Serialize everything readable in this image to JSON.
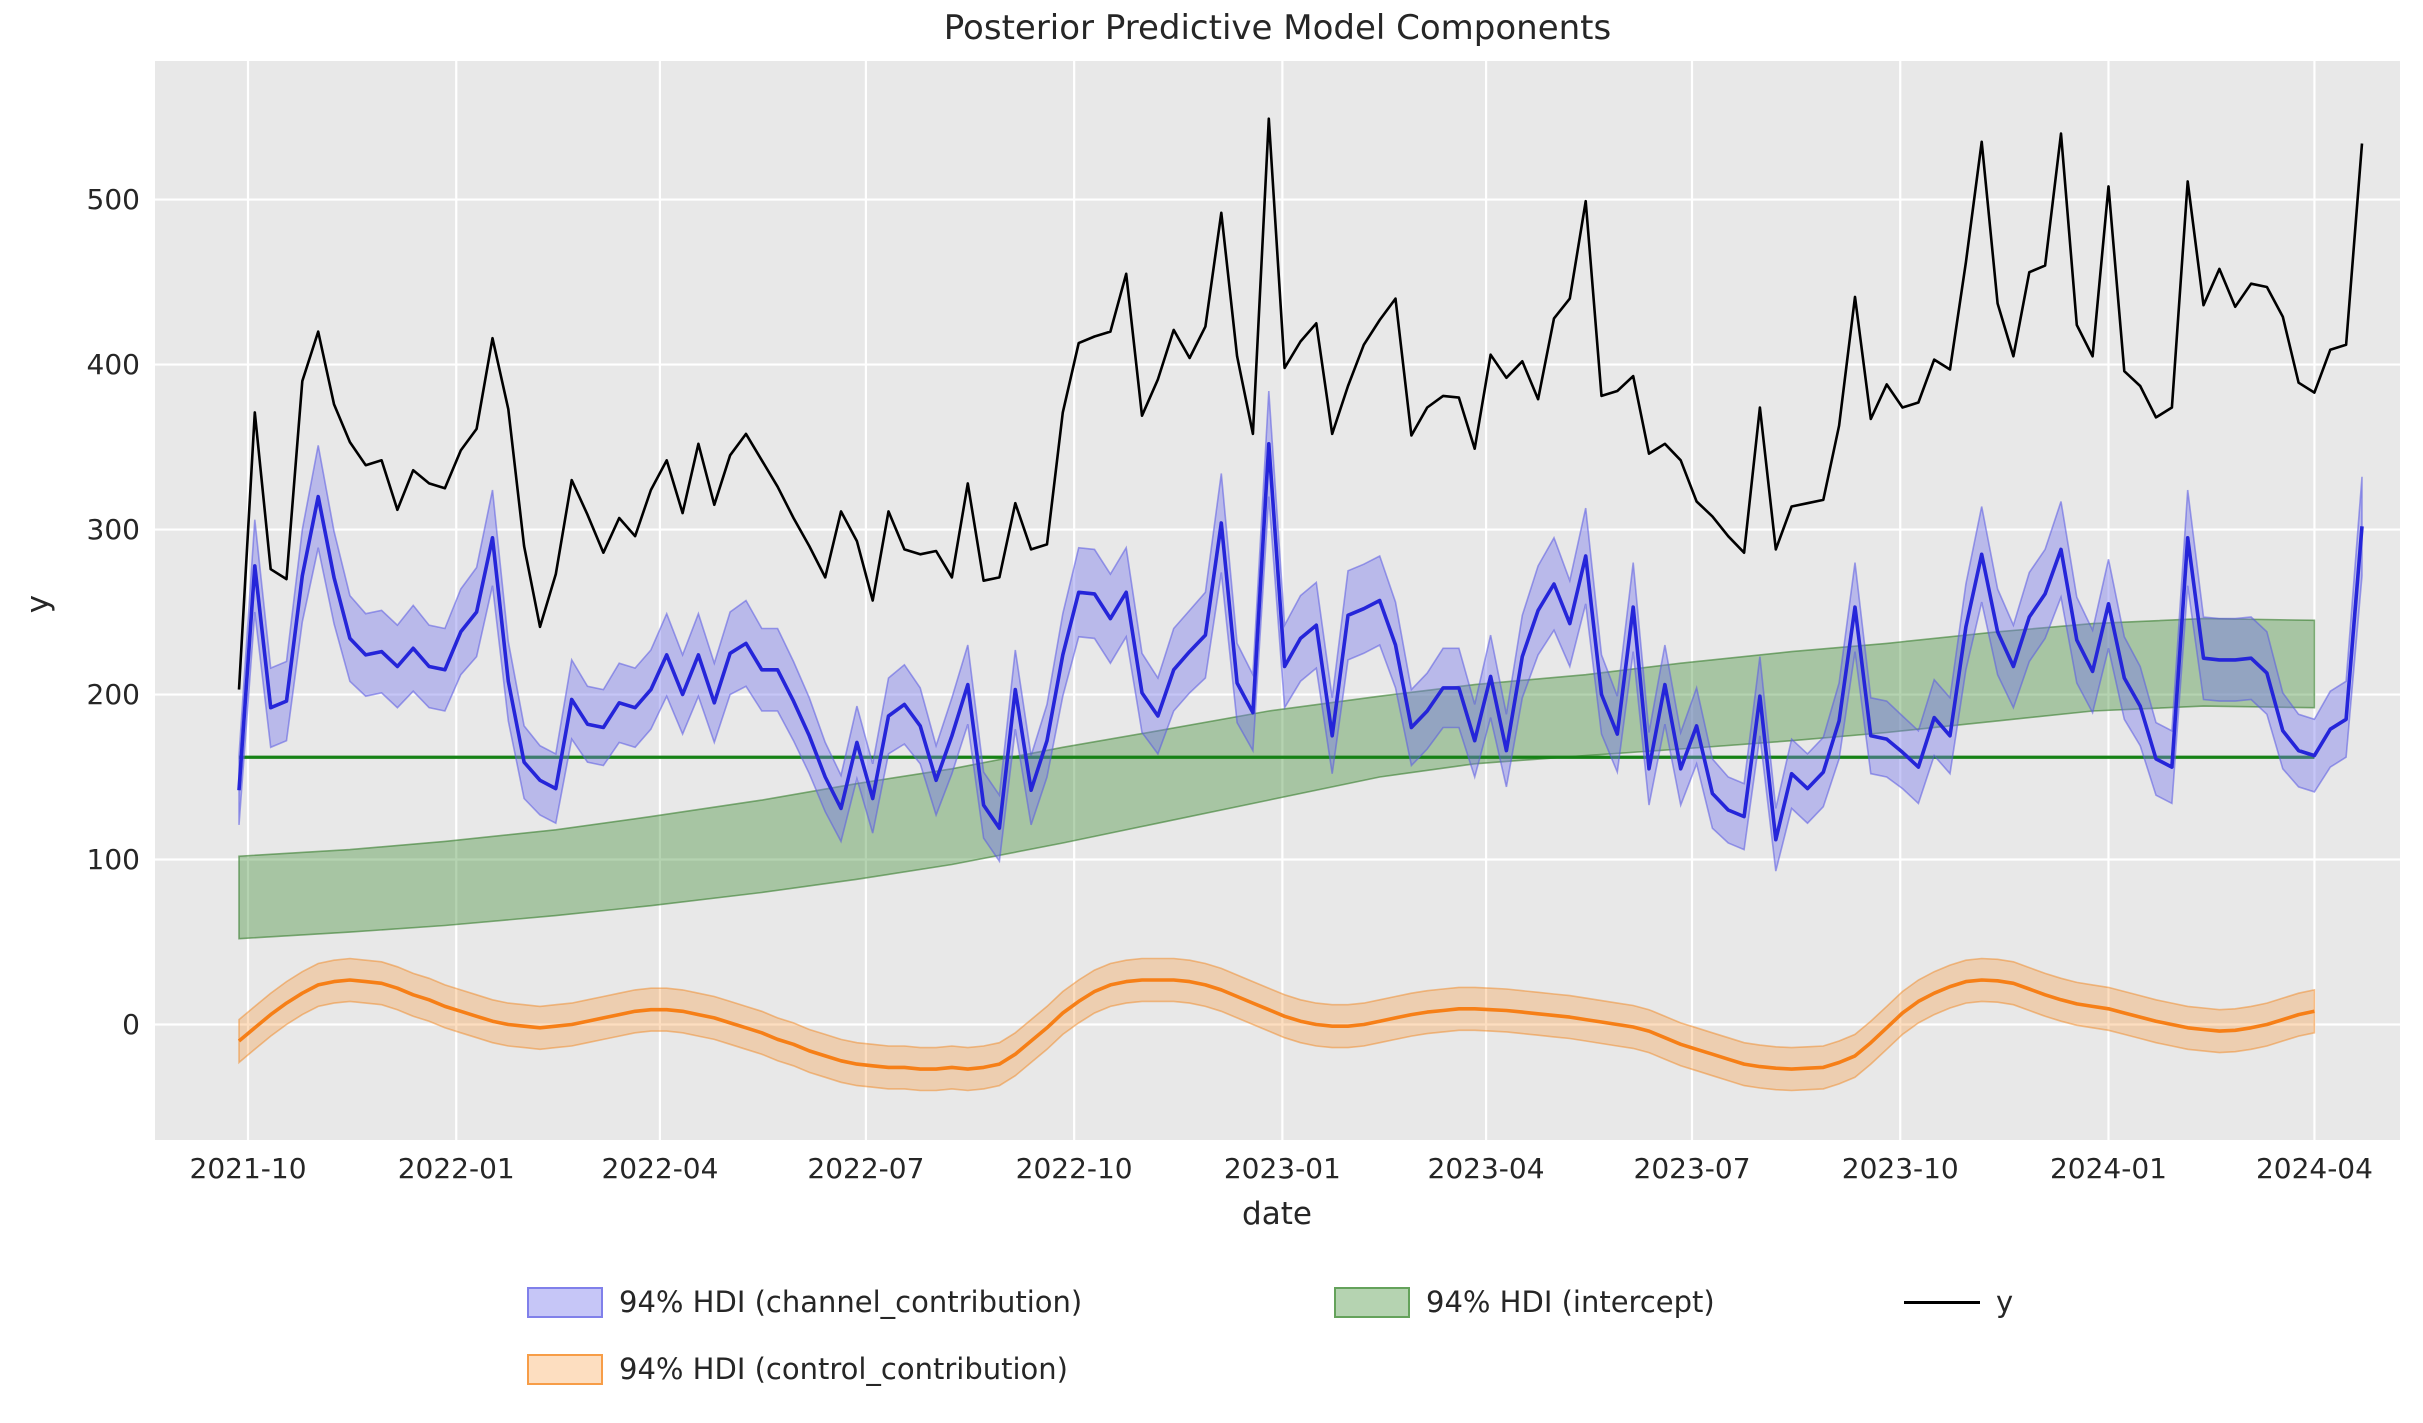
{
  "figure": {
    "title": "Posterior Predictive Model Components",
    "xlabel": "date",
    "ylabel": "y",
    "background": "#ffffff",
    "plot_background": "#e8e8e8",
    "grid_color": "#ffffff",
    "text_color": "#262626"
  },
  "axes": {
    "ylim": [
      -70,
      584
    ],
    "xlim_weeks": [
      -5.3,
      136.4
    ],
    "y_ticks": [
      0,
      100,
      200,
      300,
      400,
      500
    ],
    "x_ticks": [
      {
        "week": 0.571,
        "label": "2021-10"
      },
      {
        "week": 13.714,
        "label": "2022-01"
      },
      {
        "week": 26.571,
        "label": "2022-04"
      },
      {
        "week": 39.571,
        "label": "2022-07"
      },
      {
        "week": 52.714,
        "label": "2022-10"
      },
      {
        "week": 65.857,
        "label": "2023-01"
      },
      {
        "week": 78.714,
        "label": "2023-04"
      },
      {
        "week": 91.714,
        "label": "2023-07"
      },
      {
        "week": 104.857,
        "label": "2023-10"
      },
      {
        "week": 118.0,
        "label": "2024-01"
      },
      {
        "week": 131.0,
        "label": "2024-04"
      }
    ]
  },
  "legend": {
    "items": [
      {
        "label": "94% HDI (channel_contribution)",
        "type": "patch",
        "fill": "rgba(120,120,235,0.42)",
        "edge": "rgba(110,110,230,0.8)"
      },
      {
        "label": "94% HDI (intercept)",
        "type": "patch",
        "fill": "rgba(60,140,50,0.38)",
        "edge": "rgba(80,150,70,0.8)"
      },
      {
        "label": "y",
        "type": "line",
        "color": "#000000"
      },
      {
        "label": "94% HDI (control_contribution)",
        "type": "patch",
        "fill": "rgba(247,145,45,0.30)",
        "edge": "rgba(245,140,40,0.8)"
      }
    ]
  },
  "chart_data": {
    "type": "line",
    "title": "Posterior Predictive Model Components",
    "xlabel": "date",
    "ylabel": "y",
    "grid": true,
    "legend_position": "below",
    "x_unit": "weekly, week index 0 = 2021-09-27",
    "dates": [
      "2021-09-27",
      "2021-10-04",
      "2021-10-11",
      "2021-10-18",
      "2021-10-25",
      "2021-11-01",
      "2021-11-08",
      "2021-11-15",
      "2021-11-22",
      "2021-11-29",
      "2021-12-06",
      "2021-12-13",
      "2021-12-20",
      "2021-12-27",
      "2022-01-03",
      "2022-01-10",
      "2022-01-17",
      "2022-01-24",
      "2022-01-31",
      "2022-02-07",
      "2022-02-14",
      "2022-02-21",
      "2022-02-28",
      "2022-03-07",
      "2022-03-14",
      "2022-03-21",
      "2022-03-28",
      "2022-04-04",
      "2022-04-11",
      "2022-04-18",
      "2022-04-25",
      "2022-05-02",
      "2022-05-09",
      "2022-05-16",
      "2022-05-23",
      "2022-05-30",
      "2022-06-06",
      "2022-06-13",
      "2022-06-20",
      "2022-06-27",
      "2022-07-04",
      "2022-07-11",
      "2022-07-18",
      "2022-07-25",
      "2022-08-01",
      "2022-08-08",
      "2022-08-15",
      "2022-08-22",
      "2022-08-29",
      "2022-09-05",
      "2022-09-12",
      "2022-09-19",
      "2022-09-26",
      "2022-10-03",
      "2022-10-10",
      "2022-10-17",
      "2022-10-24",
      "2022-10-31",
      "2022-11-07",
      "2022-11-14",
      "2022-11-21",
      "2022-11-28",
      "2022-12-05",
      "2022-12-12",
      "2022-12-19",
      "2022-12-26",
      "2023-01-02",
      "2023-01-09",
      "2023-01-16",
      "2023-01-23",
      "2023-01-30",
      "2023-02-06",
      "2023-02-13",
      "2023-02-20",
      "2023-02-27",
      "2023-03-06",
      "2023-03-13",
      "2023-03-20",
      "2023-03-27",
      "2023-04-03",
      "2023-04-10",
      "2023-04-17",
      "2023-04-24",
      "2023-05-01",
      "2023-05-08",
      "2023-05-15",
      "2023-05-22",
      "2023-05-29",
      "2023-06-05",
      "2023-06-12",
      "2023-06-19",
      "2023-06-26",
      "2023-07-03",
      "2023-07-10",
      "2023-07-17",
      "2023-07-24",
      "2023-07-31",
      "2023-08-07",
      "2023-08-14",
      "2023-08-21",
      "2023-08-28",
      "2023-09-04",
      "2023-09-11",
      "2023-09-18",
      "2023-09-25",
      "2023-10-02",
      "2023-10-09",
      "2023-10-16",
      "2023-10-23",
      "2023-10-30",
      "2023-11-06",
      "2023-11-13",
      "2023-11-20",
      "2023-11-27",
      "2023-12-04",
      "2023-12-11",
      "2023-12-18",
      "2023-12-25",
      "2024-01-01",
      "2024-01-08",
      "2024-01-15",
      "2024-01-22",
      "2024-01-29",
      "2024-02-05",
      "2024-02-12",
      "2024-02-19",
      "2024-02-26",
      "2024-03-04",
      "2024-03-11",
      "2024-03-18",
      "2024-03-25",
      "2024-04-01",
      "2024-04-08",
      "2024-04-15",
      "2024-04-22"
    ],
    "series": [
      {
        "name": "y",
        "style": "line",
        "color": "#000000",
        "linewidth": 2.6,
        "values": [
          203,
          371,
          276,
          270,
          390,
          420,
          376,
          353,
          339,
          342,
          312,
          336,
          328,
          325,
          348,
          361,
          416,
          373,
          290,
          241,
          273,
          330,
          309,
          286,
          307,
          296,
          324,
          342,
          310,
          352,
          315,
          345,
          358,
          342,
          326,
          307,
          290,
          271,
          311,
          293,
          257,
          311,
          288,
          285,
          287,
          271,
          328,
          269,
          271,
          316,
          288,
          291,
          371,
          413,
          417,
          420,
          455,
          369,
          391,
          421,
          404,
          423,
          492,
          405,
          358,
          549,
          398,
          414,
          425,
          358,
          387,
          412,
          427,
          440,
          357,
          374,
          381,
          380,
          349,
          406,
          392,
          402,
          379,
          428,
          440,
          499,
          381,
          384,
          393,
          346,
          352,
          342,
          317,
          308,
          296,
          286,
          374,
          288,
          314,
          316,
          318,
          363,
          441,
          367,
          388,
          374,
          377,
          403,
          397,
          462,
          535,
          437,
          405,
          456,
          460,
          540,
          424,
          405,
          508,
          396,
          387,
          368,
          374,
          511,
          436,
          458,
          435,
          449,
          447,
          429,
          389,
          383,
          409,
          412,
          534
        ]
      },
      {
        "name": "channel_contribution",
        "style": "line+band",
        "hdi_label": "94% HDI (channel_contribution)",
        "line_color": "#2525d9",
        "band_fill": "rgba(120,120,235,0.42)",
        "band_edge": "rgba(90,90,225,0.55)",
        "linewidth": 3.6,
        "mean": [
          142,
          278,
          192,
          196,
          272,
          320,
          271,
          234,
          224,
          226,
          217,
          228,
          217,
          215,
          238,
          250,
          295,
          208,
          159,
          148,
          143,
          197,
          182,
          180,
          195,
          192,
          203,
          224,
          200,
          224,
          195,
          225,
          231,
          215,
          215,
          196,
          175,
          150,
          131,
          171,
          137,
          187,
          194,
          181,
          148,
          175,
          206,
          133,
          119,
          203,
          142,
          172,
          224,
          262,
          261,
          246,
          262,
          201,
          187,
          215,
          226,
          236,
          304,
          207,
          189,
          352,
          217,
          234,
          242,
          175,
          248,
          252,
          257,
          230,
          180,
          190,
          204,
          204,
          172,
          211,
          166,
          223,
          251,
          267,
          243,
          284,
          200,
          176,
          253,
          155,
          206,
          155,
          181,
          140,
          130,
          126,
          199,
          112,
          152,
          143,
          153,
          184,
          253,
          175,
          173,
          165,
          156,
          186,
          175,
          241,
          285,
          238,
          217,
          247,
          261,
          288,
          233,
          214,
          255,
          210,
          193,
          161,
          156,
          295,
          222,
          221,
          221,
          222,
          213,
          178,
          166,
          163,
          179,
          185,
          302
        ],
        "hdi_low": [
          121,
          250,
          168,
          172,
          244,
          289,
          243,
          208,
          199,
          201,
          192,
          202,
          192,
          190,
          212,
          223,
          266,
          184,
          137,
          127,
          122,
          173,
          159,
          157,
          171,
          168,
          179,
          199,
          176,
          199,
          171,
          200,
          205,
          190,
          190,
          172,
          152,
          129,
          111,
          149,
          116,
          164,
          170,
          158,
          127,
          152,
          182,
          113,
          99,
          179,
          121,
          150,
          199,
          235,
          234,
          219,
          235,
          177,
          164,
          190,
          201,
          210,
          274,
          183,
          166,
          320,
          192,
          208,
          216,
          152,
          221,
          225,
          230,
          204,
          157,
          167,
          180,
          180,
          150,
          186,
          144,
          198,
          224,
          239,
          217,
          255,
          176,
          153,
          226,
          133,
          182,
          133,
          158,
          119,
          110,
          106,
          175,
          93,
          131,
          122,
          132,
          161,
          226,
          152,
          150,
          143,
          134,
          163,
          152,
          215,
          256,
          212,
          192,
          220,
          234,
          259,
          207,
          189,
          228,
          185,
          169,
          139,
          134,
          266,
          197,
          196,
          196,
          197,
          188,
          155,
          144,
          141,
          156,
          162,
          272
        ],
        "hdi_high": [
          163,
          306,
          216,
          220,
          300,
          351,
          299,
          260,
          249,
          251,
          242,
          254,
          242,
          240,
          264,
          277,
          324,
          232,
          181,
          169,
          164,
          221,
          205,
          203,
          219,
          216,
          227,
          249,
          224,
          249,
          219,
          250,
          257,
          240,
          240,
          220,
          198,
          171,
          151,
          193,
          158,
          210,
          218,
          204,
          169,
          198,
          230,
          153,
          139,
          227,
          163,
          194,
          249,
          289,
          288,
          273,
          289,
          225,
          210,
          240,
          251,
          262,
          334,
          231,
          212,
          384,
          242,
          260,
          268,
          198,
          275,
          279,
          284,
          256,
          203,
          213,
          228,
          228,
          194,
          236,
          188,
          248,
          278,
          295,
          269,
          313,
          224,
          199,
          280,
          177,
          230,
          177,
          204,
          161,
          150,
          146,
          223,
          131,
          173,
          164,
          174,
          207,
          280,
          198,
          196,
          187,
          178,
          209,
          198,
          267,
          314,
          264,
          242,
          274,
          288,
          317,
          259,
          239,
          282,
          235,
          217,
          183,
          178,
          324,
          247,
          246,
          246,
          247,
          238,
          201,
          188,
          185,
          202,
          208,
          332
        ]
      },
      {
        "name": "intercept",
        "style": "band+flatline",
        "hdi_label": "94% HDI (intercept)",
        "band_fill": "rgba(60,140,50,0.38)",
        "band_edge": "rgba(55,125,45,0.6)",
        "flat_line_value": 162,
        "flat_line_color": "#168216",
        "flat_line_width": 3.2,
        "note": "band and flat line span weeks 0..131 (2021-09-27..2024-04-01)",
        "anchor_weeks": [
          0,
          7,
          13,
          20,
          26,
          33,
          39,
          45,
          52,
          58,
          65,
          72,
          78,
          85,
          91,
          98,
          104,
          111,
          117,
          124,
          131
        ],
        "hdi_low": [
          52,
          56,
          60,
          66,
          72,
          80,
          88,
          97,
          110,
          122,
          136,
          150,
          158,
          163,
          167,
          172,
          177,
          184,
          190,
          193,
          192
        ],
        "hdi_high": [
          102,
          106,
          111,
          118,
          126,
          136,
          146,
          155,
          168,
          178,
          190,
          199,
          206,
          212,
          219,
          226,
          231,
          238,
          243,
          246,
          245
        ]
      },
      {
        "name": "control_contribution",
        "style": "line+band",
        "hdi_label": "94% HDI (control_contribution)",
        "line_color": "#f67f17",
        "band_fill": "rgba(247,145,45,0.30)",
        "band_edge": "rgba(240,135,35,0.5)",
        "linewidth": 3.6,
        "hdi_halfwidth": 13,
        "note": "spans weeks 0..131 (2021-09-27..2024-04-01)",
        "mean": [
          -10,
          -2,
          6,
          13,
          19,
          24,
          26,
          27,
          26,
          25,
          22,
          18,
          15,
          11,
          8,
          5,
          2,
          0,
          -1,
          -2,
          -1,
          0,
          2,
          4,
          6,
          8,
          9,
          9,
          8,
          6,
          4,
          1,
          -2,
          -5,
          -9,
          -12,
          -16,
          -19,
          -22,
          -24,
          -25,
          -26,
          -26,
          -27,
          -27,
          -26,
          -27,
          -26,
          -24,
          -18,
          -10,
          -2,
          7,
          14,
          20,
          24,
          26,
          27,
          27,
          27,
          26,
          24,
          21,
          17,
          13,
          9,
          5,
          2,
          0,
          -1,
          -1,
          0,
          2,
          4,
          6,
          7.5,
          8.5,
          9.5,
          9.5,
          9,
          8.5,
          7.5,
          6.5,
          5.5,
          4.5,
          3,
          1.5,
          0,
          -1.5,
          -4,
          -8,
          -12,
          -15,
          -18,
          -21,
          -24,
          -25.5,
          -26.5,
          -27,
          -26.5,
          -26,
          -23,
          -19,
          -11,
          -2,
          7,
          14,
          19,
          23,
          26,
          27,
          26.5,
          25,
          21.5,
          18,
          15,
          12.5,
          11,
          9.5,
          7,
          4.5,
          2,
          0,
          -2,
          -3,
          -4,
          -3.5,
          -2,
          0,
          3,
          6,
          8
        ]
      }
    ]
  }
}
